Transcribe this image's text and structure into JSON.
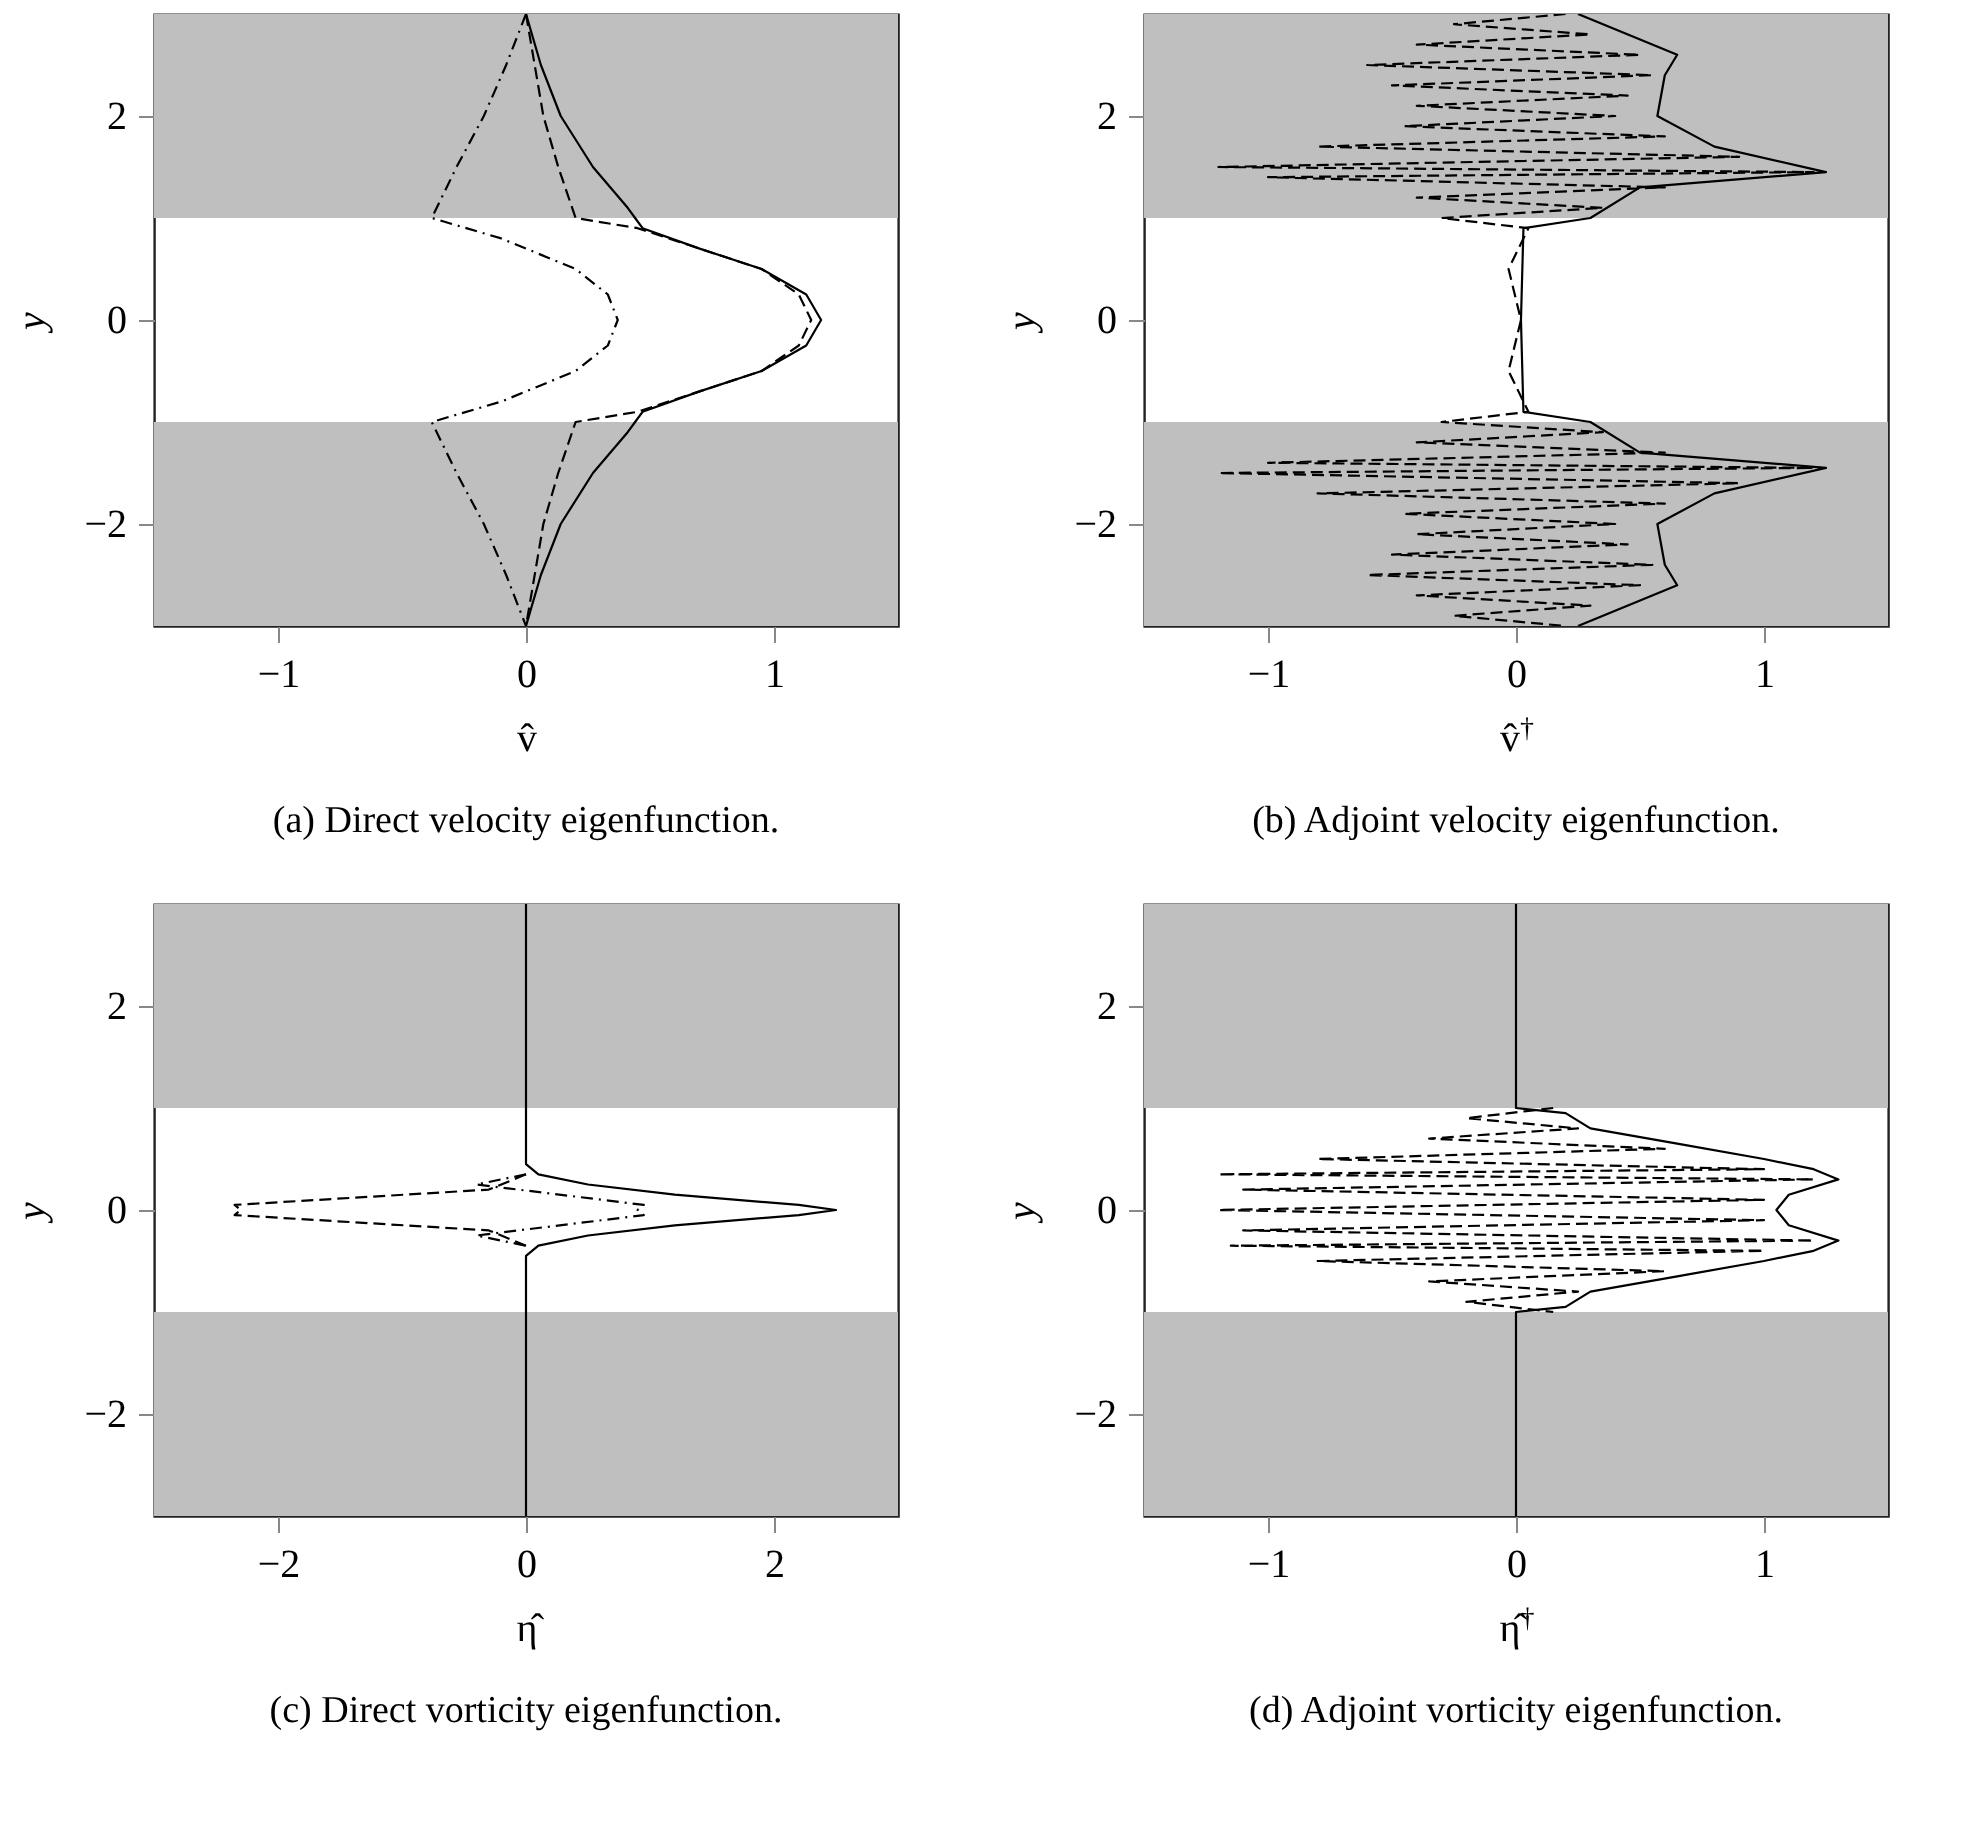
{
  "chart_data": [
    {
      "type": "line",
      "title": "(a) Direct velocity eigenfunction.",
      "xlabel": "v̂",
      "ylabel": "y",
      "xlim": [
        -1.5,
        1.5
      ],
      "ylim": [
        -3,
        3
      ],
      "xticks": [
        -1,
        0,
        1
      ],
      "yticks": [
        -2,
        0,
        2
      ],
      "grid": false,
      "bands": [
        {
          "axis": "y",
          "from": 1,
          "to": 3,
          "color": "#bfbfbf"
        },
        {
          "axis": "y",
          "from": -3,
          "to": -1,
          "color": "#bfbfbf"
        }
      ],
      "series": [
        {
          "color": "#000000",
          "line_style": "solid",
          "x": [
            0,
            0.06,
            0.14,
            0.27,
            0.41,
            0.44,
            0.47,
            0.7,
            0.95,
            1.13,
            1.19,
            1.13,
            0.95,
            0.7,
            0.47,
            0.44,
            0.41,
            0.27,
            0.14,
            0.06,
            0
          ],
          "values": [
            3,
            2.5,
            2,
            1.5,
            1.1,
            1,
            0.9,
            0.7,
            0.5,
            0.25,
            0,
            -0.25,
            -0.5,
            -0.7,
            -0.9,
            -1,
            -1.1,
            -1.5,
            -2,
            -2.5,
            -3
          ]
        },
        {
          "color": "#000000",
          "line_style": "dashed",
          "x": [
            0,
            0.07,
            0.13,
            0.2,
            0.45,
            0.7,
            0.95,
            1.1,
            1.15,
            1.1,
            0.95,
            0.7,
            0.45,
            0.2,
            0.13,
            0.07,
            0
          ],
          "values": [
            3,
            2,
            1.5,
            1,
            0.9,
            0.7,
            0.5,
            0.25,
            0,
            -0.25,
            -0.5,
            -0.7,
            -0.9,
            -1,
            -1.5,
            -2,
            -3
          ]
        },
        {
          "color": "#000000",
          "line_style": "dashdot",
          "x": [
            0,
            -0.08,
            -0.17,
            -0.28,
            -0.38,
            -0.1,
            0.2,
            0.33,
            0.37,
            0.33,
            0.2,
            -0.1,
            -0.38,
            -0.28,
            -0.17,
            -0.08,
            0
          ],
          "values": [
            3,
            2.5,
            2,
            1.5,
            1,
            0.8,
            0.5,
            0.25,
            0,
            -0.25,
            -0.5,
            -0.8,
            -1,
            -1.5,
            -2,
            -2.5,
            -3
          ]
        }
      ]
    },
    {
      "type": "line",
      "title": "(b) Adjoint velocity eigenfunction.",
      "xlabel": "v̂$^{†}$",
      "ylabel": "y",
      "xlim": [
        -1.5,
        1.5
      ],
      "ylim": [
        -3,
        3
      ],
      "xticks": [
        -1,
        0,
        1
      ],
      "yticks": [
        -2,
        0,
        2
      ],
      "grid": false,
      "bands": [
        {
          "axis": "y",
          "from": 1,
          "to": 3,
          "color": "#bfbfbf"
        },
        {
          "axis": "y",
          "from": -3,
          "to": -1,
          "color": "#bfbfbf"
        }
      ],
      "series": [
        {
          "color": "#000000",
          "line_style": "solid",
          "x": [
            0.25,
            0.65,
            0.6,
            0.57,
            0.8,
            1.25,
            0.5,
            0.3,
            0.03,
            0.02,
            0.03,
            0.3,
            0.5,
            1.25,
            0.8,
            0.57,
            0.6,
            0.65,
            0.25
          ],
          "values": [
            3,
            2.6,
            2.4,
            2,
            1.7,
            1.45,
            1.3,
            1,
            0.9,
            0,
            -0.9,
            -1,
            -1.3,
            -1.45,
            -1.7,
            -2,
            -2.4,
            -2.6,
            -3
          ]
        },
        {
          "color": "#000000",
          "line_style": "dashed",
          "x": [
            0.2,
            -0.25,
            0.3,
            -0.4,
            0.5,
            -0.6,
            0.55,
            -0.5,
            0.45,
            -0.4,
            0.4,
            -0.45,
            0.6,
            -0.8,
            0.9,
            -1.2,
            1.2,
            -1,
            0.6,
            -0.4,
            0.35,
            -0.3,
            0.05,
            -0.03,
            0.02,
            -0.03,
            0.05,
            -0.3,
            0.35,
            -0.4,
            0.6,
            -1,
            1.2,
            -1.2,
            0.9,
            -0.8,
            0.6,
            -0.45,
            0.4,
            -0.4,
            0.45,
            -0.5,
            0.55,
            -0.6,
            0.5,
            -0.4,
            0.3,
            -0.25,
            0.2
          ],
          "values": [
            3,
            2.9,
            2.8,
            2.7,
            2.6,
            2.5,
            2.4,
            2.3,
            2.2,
            2.1,
            2,
            1.9,
            1.8,
            1.7,
            1.6,
            1.5,
            1.45,
            1.4,
            1.3,
            1.2,
            1.1,
            1,
            0.9,
            0.5,
            0,
            -0.5,
            -0.9,
            -1,
            -1.1,
            -1.2,
            -1.3,
            -1.4,
            -1.45,
            -1.5,
            -1.6,
            -1.7,
            -1.8,
            -1.9,
            -2,
            -2.1,
            -2.2,
            -2.3,
            -2.4,
            -2.5,
            -2.6,
            -2.7,
            -2.8,
            -2.9,
            -3
          ]
        }
      ]
    },
    {
      "type": "line",
      "title": "(c) Direct vorticity eigenfunction.",
      "xlabel": "η̂",
      "ylabel": "y",
      "xlim": [
        -3,
        3
      ],
      "ylim": [
        -3,
        3
      ],
      "xticks": [
        -2,
        0,
        2
      ],
      "yticks": [
        -2,
        0,
        2
      ],
      "grid": false,
      "bands": [
        {
          "axis": "y",
          "from": 1,
          "to": 3,
          "color": "#bfbfbf"
        },
        {
          "axis": "y",
          "from": -3,
          "to": -1,
          "color": "#bfbfbf"
        }
      ],
      "series": [
        {
          "color": "#000000",
          "line_style": "solid",
          "x": [
            0,
            0,
            0.1,
            0.5,
            1.2,
            2.2,
            2.5,
            2.2,
            1.2,
            0.5,
            0.1,
            0,
            0
          ],
          "values": [
            3,
            0.45,
            0.35,
            0.25,
            0.15,
            0.05,
            0,
            -0.05,
            -0.15,
            -0.25,
            -0.35,
            -0.45,
            -3
          ]
        },
        {
          "color": "#000000",
          "line_style": "dashed",
          "x": [
            0,
            -0.3,
            -2.35,
            -2.3,
            -2.35,
            -0.3,
            0
          ],
          "values": [
            0.35,
            0.2,
            0.05,
            0,
            -0.05,
            -0.2,
            -0.35
          ]
        },
        {
          "color": "#000000",
          "line_style": "dashdot",
          "x": [
            0,
            -0.4,
            0.95,
            0.9,
            0.95,
            -0.4,
            0
          ],
          "values": [
            0.35,
            0.25,
            0.05,
            0,
            -0.05,
            -0.25,
            -0.35
          ]
        }
      ]
    },
    {
      "type": "line",
      "title": "(d) Adjoint vorticity eigenfunction.",
      "xlabel": "η̂$^{†}$",
      "ylabel": "y",
      "xlim": [
        -1.5,
        1.5
      ],
      "ylim": [
        -3,
        3
      ],
      "xticks": [
        -1,
        0,
        1
      ],
      "yticks": [
        -2,
        0,
        2
      ],
      "grid": false,
      "bands": [
        {
          "axis": "y",
          "from": 1,
          "to": 3,
          "color": "#bfbfbf"
        },
        {
          "axis": "y",
          "from": -3,
          "to": -1,
          "color": "#bfbfbf"
        }
      ],
      "series": [
        {
          "color": "#000000",
          "line_style": "solid",
          "x": [
            0,
            0,
            0.2,
            0.3,
            0.65,
            1,
            1.2,
            1.3,
            1.1,
            1.05,
            1.1,
            1.3,
            1.2,
            1,
            0.65,
            0.3,
            0.2,
            0,
            0
          ],
          "values": [
            3,
            1,
            0.95,
            0.8,
            0.65,
            0.5,
            0.4,
            0.3,
            0.15,
            0,
            -0.15,
            -0.3,
            -0.4,
            -0.5,
            -0.65,
            -0.8,
            -0.95,
            -1,
            -3
          ]
        },
        {
          "color": "#000000",
          "line_style": "dashed",
          "x": [
            0.15,
            -0.2,
            0.25,
            -0.35,
            0.6,
            -0.8,
            1,
            -1.2,
            1.2,
            -1.1,
            1,
            -1.2,
            1,
            -1.1,
            1.2,
            -1.15,
            1,
            -0.8,
            0.6,
            -0.35,
            0.25,
            -0.2,
            0.15
          ],
          "values": [
            1,
            0.9,
            0.8,
            0.7,
            0.6,
            0.5,
            0.4,
            0.35,
            0.3,
            0.2,
            0.1,
            0,
            -0.1,
            -0.2,
            -0.3,
            -0.35,
            -0.4,
            -0.5,
            -0.6,
            -0.7,
            -0.8,
            -0.9,
            -1
          ]
        }
      ]
    }
  ]
}
